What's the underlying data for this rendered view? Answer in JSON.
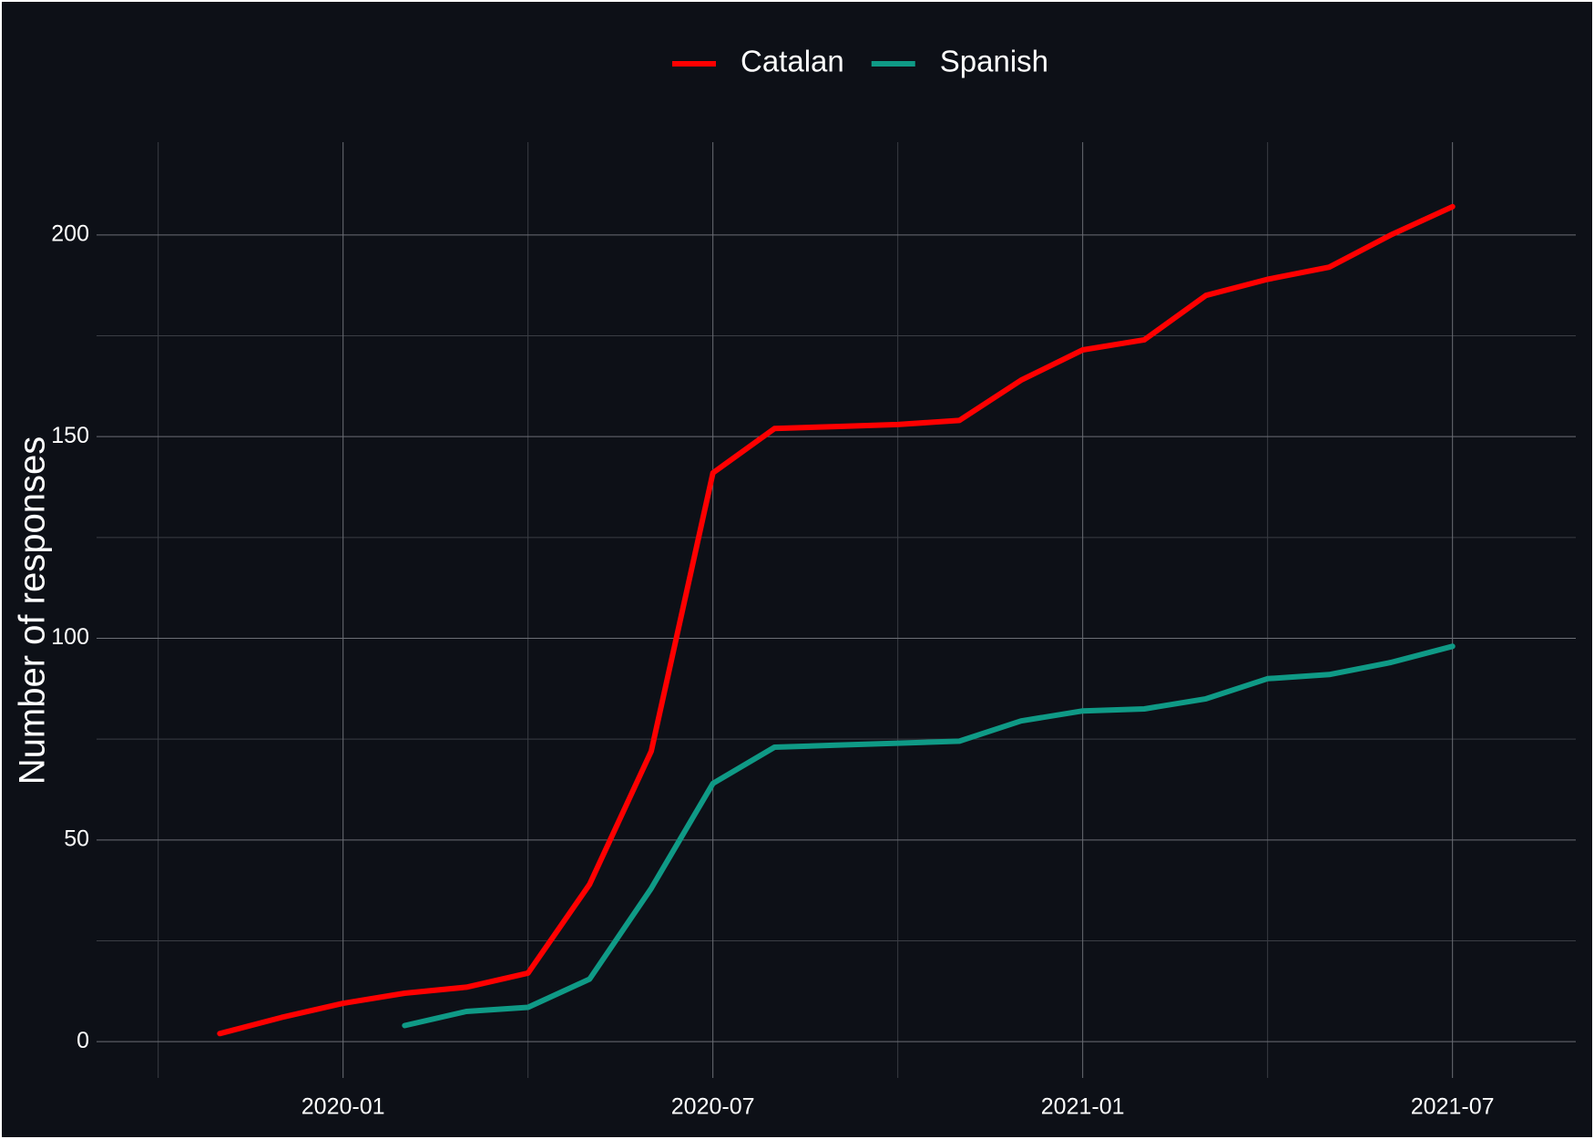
{
  "chart_data": {
    "type": "line",
    "y_label": "Number of responses",
    "x": [
      "2019-11",
      "2019-12",
      "2020-01",
      "2020-02",
      "2020-03",
      "2020-04",
      "2020-05",
      "2020-06",
      "2020-07",
      "2020-08",
      "2020-09",
      "2020-10",
      "2020-11",
      "2020-12",
      "2021-01",
      "2021-02",
      "2021-03",
      "2021-04",
      "2021-05",
      "2021-06",
      "2021-07"
    ],
    "series": [
      {
        "name": "Catalan",
        "color": "#ff0000",
        "values": [
          2,
          6,
          9.5,
          12,
          13.5,
          17,
          39,
          72,
          141,
          152,
          152.5,
          153,
          154,
          164,
          171.5,
          174,
          185,
          189,
          192,
          200,
          207
        ]
      },
      {
        "name": "Spanish",
        "color": "#0f9a86",
        "values": [
          null,
          null,
          null,
          4,
          7.5,
          8.5,
          15.5,
          38,
          64,
          73,
          73.5,
          74,
          74.5,
          79.5,
          82,
          82.5,
          85,
          90,
          91,
          94,
          98
        ]
      }
    ],
    "xlim": [
      "2019-09",
      "2021-09"
    ],
    "xticks": [
      "2020-01",
      "2020-07",
      "2021-01",
      "2021-07"
    ],
    "xminorticks": [
      "2019-10",
      "2020-04",
      "2020-10",
      "2021-04"
    ],
    "ylim": [
      -9,
      223
    ],
    "yticks": [
      0,
      50,
      100,
      150,
      200
    ],
    "yminorticks": [
      25,
      75,
      125,
      175
    ],
    "grid": true,
    "legend": "top"
  }
}
